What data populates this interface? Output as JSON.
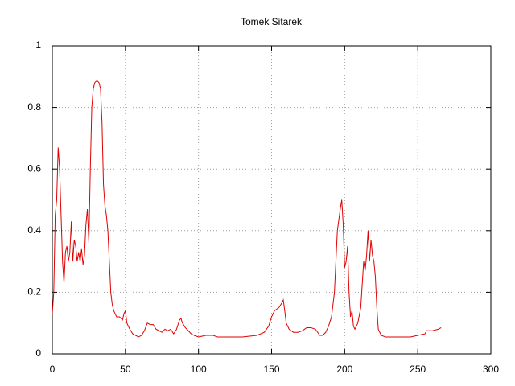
{
  "chart_data": {
    "type": "line",
    "title": "Tomek Sitarek",
    "x": [
      0,
      1,
      2,
      3,
      4,
      5,
      6,
      7,
      8,
      9,
      10,
      11,
      12,
      13,
      14,
      15,
      16,
      17,
      18,
      19,
      20,
      21,
      22,
      23,
      24,
      25,
      26,
      27,
      28,
      29,
      30,
      31,
      32,
      33,
      34,
      35,
      36,
      37,
      38,
      39,
      40,
      41,
      42,
      44,
      46,
      48,
      49,
      50,
      51,
      53,
      55,
      57,
      59,
      61,
      63,
      65,
      67,
      69,
      71,
      73,
      75,
      77,
      79,
      81,
      83,
      85,
      87,
      88,
      89,
      91,
      93,
      95,
      97,
      100,
      105,
      110,
      113,
      120,
      130,
      140,
      145,
      148,
      150,
      152,
      155,
      157,
      158,
      159,
      160,
      162,
      165,
      168,
      171,
      174,
      177,
      180,
      183,
      185,
      187,
      189,
      191,
      193,
      195,
      197,
      198,
      199,
      200,
      201,
      202,
      203,
      204,
      205,
      206,
      207,
      209,
      211,
      213,
      214,
      215,
      216,
      217,
      218,
      219,
      220,
      221,
      222,
      223,
      225,
      228,
      235,
      245,
      250,
      255,
      256,
      260,
      264,
      266
    ],
    "values": [
      0.13,
      0.2,
      0.45,
      0.5,
      0.67,
      0.6,
      0.45,
      0.3,
      0.23,
      0.33,
      0.35,
      0.3,
      0.33,
      0.43,
      0.3,
      0.37,
      0.35,
      0.3,
      0.33,
      0.3,
      0.34,
      0.29,
      0.32,
      0.42,
      0.47,
      0.36,
      0.6,
      0.8,
      0.86,
      0.88,
      0.885,
      0.885,
      0.88,
      0.86,
      0.75,
      0.55,
      0.48,
      0.45,
      0.4,
      0.3,
      0.2,
      0.16,
      0.14,
      0.12,
      0.12,
      0.11,
      0.13,
      0.14,
      0.1,
      0.08,
      0.065,
      0.06,
      0.055,
      0.06,
      0.075,
      0.1,
      0.095,
      0.095,
      0.08,
      0.075,
      0.07,
      0.08,
      0.075,
      0.08,
      0.065,
      0.08,
      0.11,
      0.115,
      0.1,
      0.085,
      0.075,
      0.065,
      0.06,
      0.055,
      0.06,
      0.06,
      0.055,
      0.055,
      0.055,
      0.06,
      0.07,
      0.09,
      0.12,
      0.14,
      0.15,
      0.165,
      0.175,
      0.14,
      0.1,
      0.08,
      0.07,
      0.07,
      0.075,
      0.085,
      0.085,
      0.08,
      0.06,
      0.06,
      0.07,
      0.09,
      0.12,
      0.2,
      0.4,
      0.47,
      0.5,
      0.42,
      0.28,
      0.3,
      0.35,
      0.2,
      0.12,
      0.14,
      0.09,
      0.08,
      0.1,
      0.15,
      0.3,
      0.27,
      0.32,
      0.4,
      0.3,
      0.37,
      0.32,
      0.3,
      0.25,
      0.15,
      0.08,
      0.06,
      0.055,
      0.055,
      0.055,
      0.06,
      0.065,
      0.075,
      0.075,
      0.08,
      0.085
    ],
    "color": "#e00000",
    "xlim": [
      0,
      300
    ],
    "xticks": [
      0,
      50,
      100,
      150,
      200,
      250,
      300
    ],
    "ylim": [
      0,
      1
    ],
    "yticks": [
      0,
      0.2,
      0.4,
      0.6,
      0.8,
      1
    ],
    "grid": true
  }
}
